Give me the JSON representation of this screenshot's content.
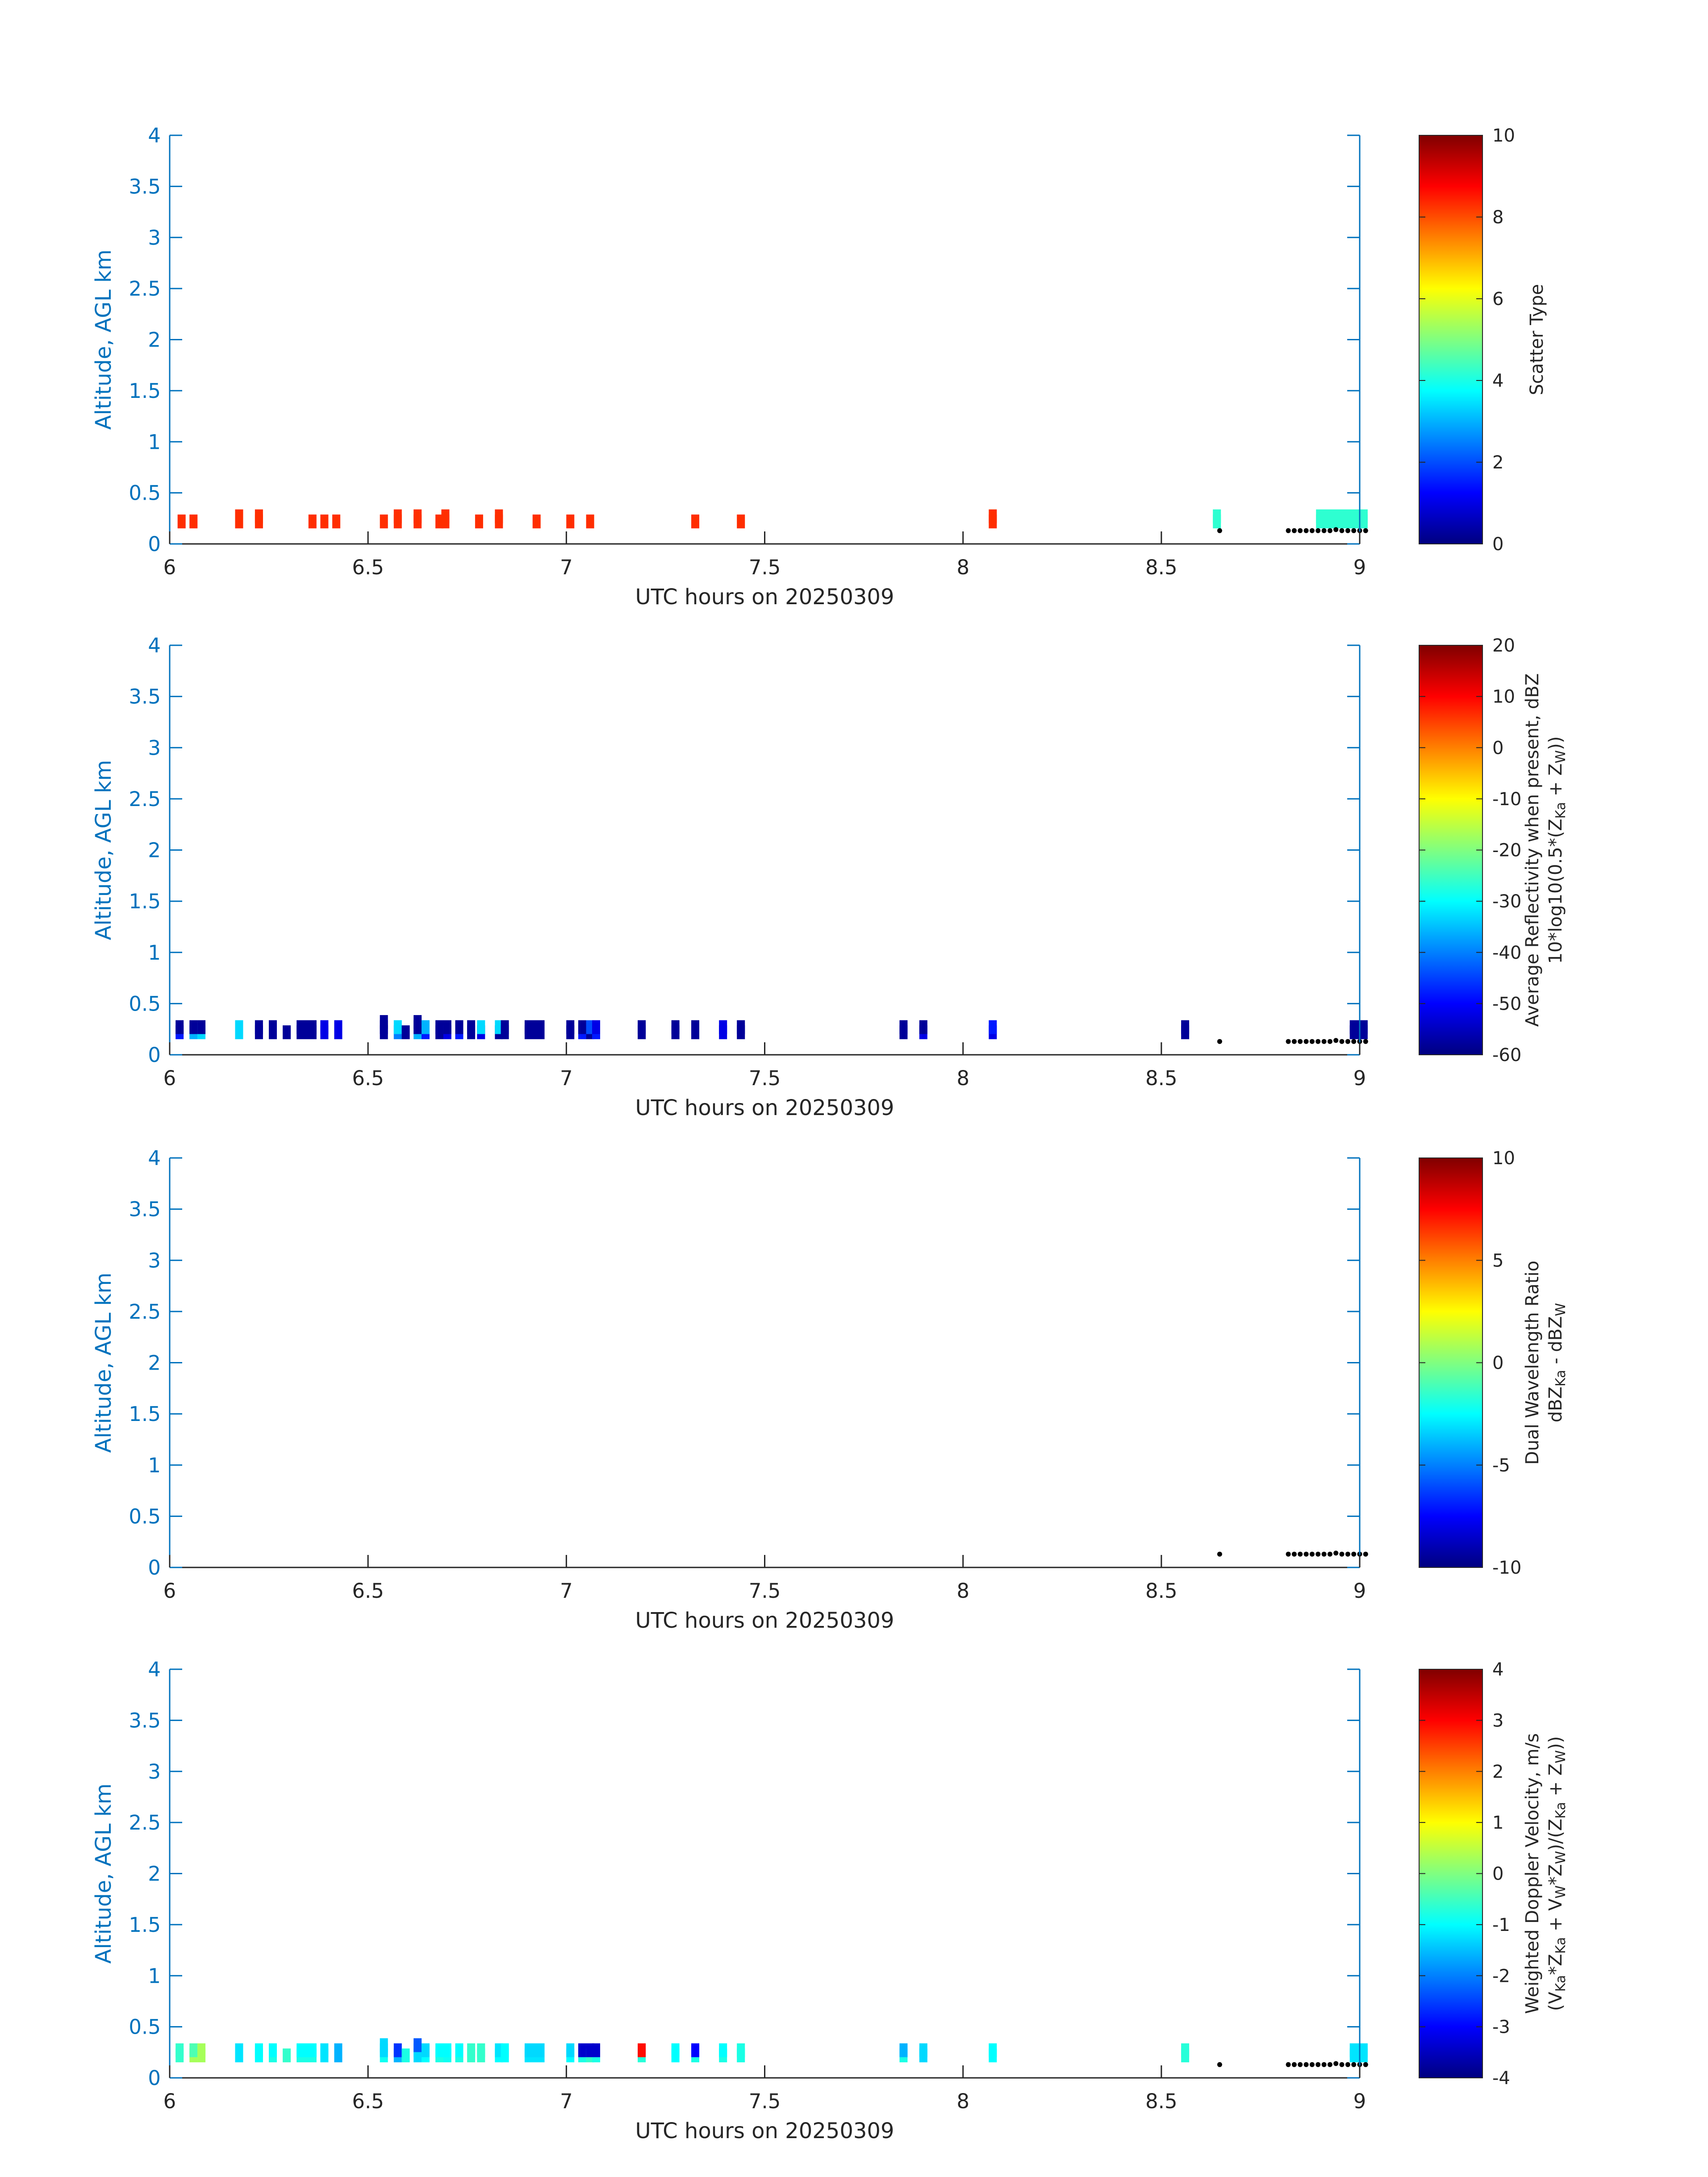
{
  "chart_data": [
    {
      "type": "heatmap",
      "xlabel": "UTC hours on 20250309",
      "ylabel": "Altitude, AGL km",
      "xlim": [
        6,
        9
      ],
      "ylim": [
        0,
        4
      ],
      "x_ticks": [
        "6",
        "6.5",
        "7",
        "7.5",
        "8",
        "8.5",
        "9"
      ],
      "y_ticks": [
        "0",
        "0.5",
        "1",
        "1.5",
        "2",
        "2.5",
        "3",
        "3.5",
        "4"
      ],
      "colorbar": {
        "label_lines": [
          "Scatter Type"
        ],
        "range": [
          0,
          10
        ],
        "ticks": [
          "0",
          "2",
          "4",
          "6",
          "8",
          "10"
        ]
      },
      "cells": [
        {
          "t": 6.03,
          "h": 0.22,
          "v": 8.3
        },
        {
          "t": 6.06,
          "h": 0.22,
          "v": 8.3
        },
        {
          "t": 6.175,
          "h": 0.22,
          "v": 8.3
        },
        {
          "t": 6.175,
          "h": 0.27,
          "v": 8.3
        },
        {
          "t": 6.225,
          "h": 0.22,
          "v": 8.3
        },
        {
          "t": 6.225,
          "h": 0.27,
          "v": 8.3
        },
        {
          "t": 6.36,
          "h": 0.22,
          "v": 8.3
        },
        {
          "t": 6.39,
          "h": 0.22,
          "v": 8.3
        },
        {
          "t": 6.42,
          "h": 0.22,
          "v": 8.3
        },
        {
          "t": 6.54,
          "h": 0.22,
          "v": 8.3
        },
        {
          "t": 6.575,
          "h": 0.22,
          "v": 8.3
        },
        {
          "t": 6.575,
          "h": 0.27,
          "v": 8.3
        },
        {
          "t": 6.625,
          "h": 0.22,
          "v": 8.3
        },
        {
          "t": 6.625,
          "h": 0.27,
          "v": 8.3
        },
        {
          "t": 6.68,
          "h": 0.22,
          "v": 8.3
        },
        {
          "t": 6.695,
          "h": 0.22,
          "v": 8.3
        },
        {
          "t": 6.695,
          "h": 0.27,
          "v": 8.3
        },
        {
          "t": 6.78,
          "h": 0.22,
          "v": 8.3
        },
        {
          "t": 6.83,
          "h": 0.22,
          "v": 8.3
        },
        {
          "t": 6.83,
          "h": 0.27,
          "v": 8.3
        },
        {
          "t": 6.925,
          "h": 0.22,
          "v": 8.3
        },
        {
          "t": 7.01,
          "h": 0.22,
          "v": 8.3
        },
        {
          "t": 7.06,
          "h": 0.22,
          "v": 8.3
        },
        {
          "t": 7.325,
          "h": 0.22,
          "v": 8.3
        },
        {
          "t": 7.44,
          "h": 0.22,
          "v": 8.3
        },
        {
          "t": 8.075,
          "h": 0.22,
          "v": 8.3
        },
        {
          "t": 8.075,
          "h": 0.27,
          "v": 8.3
        },
        {
          "t": 8.64,
          "h": 0.22,
          "v": 4.2
        },
        {
          "t": 8.64,
          "h": 0.27,
          "v": 4.2
        },
        {
          "t": 8.9,
          "t2": 9.01,
          "h": 0.22,
          "v": 4.2
        },
        {
          "t": 8.9,
          "t2": 9.01,
          "h": 0.27,
          "v": 4.2
        }
      ]
    },
    {
      "type": "heatmap",
      "xlabel": "UTC hours on 20250309",
      "ylabel": "Altitude, AGL km",
      "xlim": [
        6,
        9
      ],
      "ylim": [
        0,
        4
      ],
      "x_ticks": [
        "6",
        "6.5",
        "7",
        "7.5",
        "8",
        "8.5",
        "9"
      ],
      "y_ticks": [
        "0",
        "0.5",
        "1",
        "1.5",
        "2",
        "2.5",
        "3",
        "3.5",
        "4"
      ],
      "colorbar": {
        "label_lines": [
          "Average Reflectivity when present, dBZ",
          "10*log10(0.5*(Z",
          "Ka",
          " + Z",
          "W",
          "))"
        ],
        "range": [
          -60,
          20
        ],
        "ticks": [
          "-60",
          "-50",
          "-40",
          "-30",
          "-20",
          "-10",
          "0",
          "10",
          "20"
        ]
      },
      "cells": [
        {
          "t": 6.025,
          "h": 0.22,
          "v": -48
        },
        {
          "t": 6.025,
          "h": 0.27,
          "v": -58
        },
        {
          "t": 6.06,
          "h": 0.22,
          "v": -36
        },
        {
          "t": 6.06,
          "h": 0.27,
          "v": -58
        },
        {
          "t": 6.08,
          "h": 0.22,
          "v": -33
        },
        {
          "t": 6.08,
          "h": 0.27,
          "v": -58
        },
        {
          "t": 6.175,
          "h": 0.22,
          "v": -33
        },
        {
          "t": 6.175,
          "h": 0.27,
          "v": -33
        },
        {
          "t": 6.225,
          "h": 0.22,
          "v": -58
        },
        {
          "t": 6.225,
          "h": 0.27,
          "v": -58
        },
        {
          "t": 6.26,
          "h": 0.22,
          "v": -58
        },
        {
          "t": 6.26,
          "h": 0.27,
          "v": -58
        },
        {
          "t": 6.295,
          "h": 0.22,
          "v": -58
        },
        {
          "t": 6.33,
          "t2": 6.36,
          "h": 0.22,
          "v": -58
        },
        {
          "t": 6.33,
          "t2": 6.36,
          "h": 0.27,
          "v": -58
        },
        {
          "t": 6.39,
          "h": 0.22,
          "v": -52
        },
        {
          "t": 6.39,
          "h": 0.27,
          "v": -52
        },
        {
          "t": 6.425,
          "h": 0.22,
          "v": -52
        },
        {
          "t": 6.425,
          "h": 0.27,
          "v": -52
        },
        {
          "t": 6.54,
          "h": 0.22,
          "v": -58
        },
        {
          "t": 6.54,
          "h": 0.27,
          "v": -58
        },
        {
          "t": 6.54,
          "h": 0.32,
          "v": -58
        },
        {
          "t": 6.575,
          "h": 0.22,
          "v": -40
        },
        {
          "t": 6.575,
          "h": 0.27,
          "v": -33
        },
        {
          "t": 6.595,
          "h": 0.22,
          "v": -58
        },
        {
          "t": 6.625,
          "h": 0.22,
          "v": -36
        },
        {
          "t": 6.625,
          "h": 0.27,
          "v": -58
        },
        {
          "t": 6.625,
          "h": 0.32,
          "v": -58
        },
        {
          "t": 6.645,
          "h": 0.22,
          "v": -48
        },
        {
          "t": 6.645,
          "h": 0.27,
          "v": -36
        },
        {
          "t": 6.68,
          "h": 0.22,
          "v": -58
        },
        {
          "t": 6.68,
          "h": 0.27,
          "v": -58
        },
        {
          "t": 6.7,
          "h": 0.22,
          "v": -52
        },
        {
          "t": 6.7,
          "h": 0.27,
          "v": -58
        },
        {
          "t": 6.73,
          "h": 0.22,
          "v": -48
        },
        {
          "t": 6.73,
          "h": 0.27,
          "v": -58
        },
        {
          "t": 6.76,
          "h": 0.22,
          "v": -58
        },
        {
          "t": 6.76,
          "h": 0.27,
          "v": -58
        },
        {
          "t": 6.785,
          "h": 0.22,
          "v": -52
        },
        {
          "t": 6.785,
          "h": 0.27,
          "v": -33
        },
        {
          "t": 6.83,
          "h": 0.22,
          "v": -58
        },
        {
          "t": 6.83,
          "h": 0.27,
          "v": -33
        },
        {
          "t": 6.845,
          "h": 0.22,
          "v": -58
        },
        {
          "t": 6.845,
          "h": 0.27,
          "v": -58
        },
        {
          "t": 6.905,
          "t2": 6.935,
          "h": 0.22,
          "v": -58
        },
        {
          "t": 6.905,
          "t2": 6.935,
          "h": 0.27,
          "v": -58
        },
        {
          "t": 7.01,
          "h": 0.22,
          "v": -58
        },
        {
          "t": 7.01,
          "h": 0.27,
          "v": -58
        },
        {
          "t": 7.04,
          "h": 0.22,
          "v": -48
        },
        {
          "t": 7.04,
          "h": 0.27,
          "v": -58
        },
        {
          "t": 7.06,
          "h": 0.22,
          "v": -58
        },
        {
          "t": 7.06,
          "h": 0.27,
          "v": -44
        },
        {
          "t": 7.075,
          "h": 0.22,
          "v": -48
        },
        {
          "t": 7.075,
          "h": 0.27,
          "v": -52
        },
        {
          "t": 7.19,
          "h": 0.22,
          "v": -58
        },
        {
          "t": 7.19,
          "h": 0.27,
          "v": -58
        },
        {
          "t": 7.275,
          "h": 0.22,
          "v": -58
        },
        {
          "t": 7.275,
          "h": 0.27,
          "v": -58
        },
        {
          "t": 7.325,
          "h": 0.22,
          "v": -58
        },
        {
          "t": 7.325,
          "h": 0.27,
          "v": -58
        },
        {
          "t": 7.395,
          "h": 0.22,
          "v": -52
        },
        {
          "t": 7.395,
          "h": 0.27,
          "v": -52
        },
        {
          "t": 7.44,
          "h": 0.22,
          "v": -58
        },
        {
          "t": 7.44,
          "h": 0.27,
          "v": -58
        },
        {
          "t": 7.85,
          "h": 0.22,
          "v": -58
        },
        {
          "t": 7.85,
          "h": 0.27,
          "v": -58
        },
        {
          "t": 7.9,
          "h": 0.22,
          "v": -52
        },
        {
          "t": 7.9,
          "h": 0.27,
          "v": -58
        },
        {
          "t": 8.075,
          "h": 0.22,
          "v": -52
        },
        {
          "t": 8.075,
          "h": 0.27,
          "v": -48
        },
        {
          "t": 8.56,
          "h": 0.22,
          "v": -58
        },
        {
          "t": 8.56,
          "h": 0.27,
          "v": -58
        },
        {
          "t": 8.985,
          "t2": 9.01,
          "h": 0.22,
          "v": -58
        },
        {
          "t": 8.985,
          "t2": 9.01,
          "h": 0.27,
          "v": -58
        }
      ]
    },
    {
      "type": "heatmap",
      "xlabel": "UTC hours on 20250309",
      "ylabel": "Altitude, AGL km",
      "xlim": [
        6,
        9
      ],
      "ylim": [
        0,
        4
      ],
      "x_ticks": [
        "6",
        "6.5",
        "7",
        "7.5",
        "8",
        "8.5",
        "9"
      ],
      "y_ticks": [
        "0",
        "0.5",
        "1",
        "1.5",
        "2",
        "2.5",
        "3",
        "3.5",
        "4"
      ],
      "colorbar": {
        "label_lines": [
          "Dual Wavelength Ratio",
          "dBZ",
          "Ka",
          " - dBZ",
          "W"
        ],
        "range": [
          -10,
          10
        ],
        "ticks": [
          "-10",
          "-5",
          "0",
          "5",
          "10"
        ]
      },
      "cells": []
    },
    {
      "type": "heatmap",
      "xlabel": "UTC hours on 20250309",
      "ylabel": "Altitude, AGL km",
      "xlim": [
        6,
        9
      ],
      "ylim": [
        0,
        4
      ],
      "x_ticks": [
        "6",
        "6.5",
        "7",
        "7.5",
        "8",
        "8.5",
        "9"
      ],
      "y_ticks": [
        "0",
        "0.5",
        "1",
        "1.5",
        "2",
        "2.5",
        "3",
        "3.5",
        "4"
      ],
      "colorbar": {
        "label_lines": [
          "Weighted Doppler Velocity, m/s",
          "(V",
          "Ka",
          "*Z",
          "Ka",
          " + V",
          "W",
          "*Z",
          "W",
          ")/(Z",
          "Ka",
          " + Z",
          "W",
          "))"
        ],
        "range": [
          -4,
          4
        ],
        "ticks": [
          "-4",
          "-3",
          "-2",
          "-1",
          "0",
          "1",
          "2",
          "3",
          "4"
        ]
      },
      "cells": [
        {
          "t": 6.025,
          "h": 0.22,
          "v": -0.6
        },
        {
          "t": 6.025,
          "h": 0.27,
          "v": -0.6
        },
        {
          "t": 6.06,
          "h": 0.22,
          "v": 0.3
        },
        {
          "t": 6.06,
          "h": 0.27,
          "v": -0.4
        },
        {
          "t": 6.08,
          "h": 0.22,
          "v": 0.3
        },
        {
          "t": 6.08,
          "h": 0.27,
          "v": 0.3
        },
        {
          "t": 6.175,
          "h": 0.22,
          "v": -1.2
        },
        {
          "t": 6.175,
          "h": 0.27,
          "v": -1.2
        },
        {
          "t": 6.225,
          "h": 0.22,
          "v": -1.0
        },
        {
          "t": 6.225,
          "h": 0.27,
          "v": -1.0
        },
        {
          "t": 6.26,
          "h": 0.22,
          "v": -0.8
        },
        {
          "t": 6.26,
          "h": 0.27,
          "v": -1.0
        },
        {
          "t": 6.295,
          "h": 0.22,
          "v": -0.6
        },
        {
          "t": 6.33,
          "t2": 6.36,
          "h": 0.22,
          "v": -0.8
        },
        {
          "t": 6.33,
          "t2": 6.36,
          "h": 0.27,
          "v": -1.0
        },
        {
          "t": 6.39,
          "h": 0.22,
          "v": -1.2
        },
        {
          "t": 6.39,
          "h": 0.27,
          "v": -1.2
        },
        {
          "t": 6.425,
          "h": 0.22,
          "v": -1.6
        },
        {
          "t": 6.425,
          "h": 0.27,
          "v": -1.6
        },
        {
          "t": 6.54,
          "h": 0.22,
          "v": -0.9
        },
        {
          "t": 6.54,
          "h": 0.27,
          "v": -1.3
        },
        {
          "t": 6.54,
          "h": 0.32,
          "v": -1.3
        },
        {
          "t": 6.575,
          "h": 0.22,
          "v": -1.6
        },
        {
          "t": 6.575,
          "h": 0.27,
          "v": -2.6
        },
        {
          "t": 6.595,
          "h": 0.22,
          "v": -0.8
        },
        {
          "t": 6.625,
          "h": 0.22,
          "v": -1.3
        },
        {
          "t": 6.625,
          "h": 0.27,
          "v": -1.3
        },
        {
          "t": 6.625,
          "h": 0.32,
          "v": -2.3
        },
        {
          "t": 6.645,
          "h": 0.22,
          "v": -1.0
        },
        {
          "t": 6.645,
          "h": 0.27,
          "v": -1.3
        },
        {
          "t": 6.68,
          "h": 0.22,
          "v": -0.8
        },
        {
          "t": 6.68,
          "h": 0.27,
          "v": -1.0
        },
        {
          "t": 6.7,
          "h": 0.22,
          "v": -0.9
        },
        {
          "t": 6.7,
          "h": 0.27,
          "v": -1.0
        },
        {
          "t": 6.73,
          "h": 0.22,
          "v": -0.8
        },
        {
          "t": 6.73,
          "h": 0.27,
          "v": -1.0
        },
        {
          "t": 6.76,
          "h": 0.22,
          "v": -0.6
        },
        {
          "t": 6.76,
          "h": 0.27,
          "v": -0.6
        },
        {
          "t": 6.785,
          "h": 0.22,
          "v": -0.6
        },
        {
          "t": 6.785,
          "h": 0.27,
          "v": -0.6
        },
        {
          "t": 6.83,
          "h": 0.22,
          "v": -1.0
        },
        {
          "t": 6.83,
          "h": 0.27,
          "v": -1.2
        },
        {
          "t": 6.845,
          "h": 0.22,
          "v": -1.0
        },
        {
          "t": 6.845,
          "h": 0.27,
          "v": -1.0
        },
        {
          "t": 6.905,
          "t2": 6.935,
          "h": 0.22,
          "v": -1.2
        },
        {
          "t": 6.905,
          "t2": 6.935,
          "h": 0.27,
          "v": -1.3
        },
        {
          "t": 7.01,
          "h": 0.22,
          "v": -1.0
        },
        {
          "t": 7.01,
          "h": 0.27,
          "v": -1.3
        },
        {
          "t": 7.04,
          "h": 0.22,
          "v": -0.8
        },
        {
          "t": 7.04,
          "h": 0.27,
          "v": -3.4
        },
        {
          "t": 7.06,
          "h": 0.22,
          "v": -0.6
        },
        {
          "t": 7.06,
          "h": 0.27,
          "v": -3.4
        },
        {
          "t": 7.075,
          "h": 0.22,
          "v": -0.8
        },
        {
          "t": 7.075,
          "h": 0.27,
          "v": -3.4
        },
        {
          "t": 7.19,
          "h": 0.22,
          "v": -0.7
        },
        {
          "t": 7.19,
          "h": 0.27,
          "v": 2.9
        },
        {
          "t": 7.275,
          "h": 0.22,
          "v": -1.0
        },
        {
          "t": 7.275,
          "h": 0.27,
          "v": -1.0
        },
        {
          "t": 7.325,
          "h": 0.22,
          "v": -0.8
        },
        {
          "t": 7.325,
          "h": 0.27,
          "v": -3.0
        },
        {
          "t": 7.395,
          "h": 0.22,
          "v": -0.8
        },
        {
          "t": 7.395,
          "h": 0.27,
          "v": -1.0
        },
        {
          "t": 7.44,
          "h": 0.22,
          "v": -0.8
        },
        {
          "t": 7.44,
          "h": 0.27,
          "v": -0.8
        },
        {
          "t": 7.85,
          "h": 0.22,
          "v": -0.8
        },
        {
          "t": 7.85,
          "h": 0.27,
          "v": -1.6
        },
        {
          "t": 7.9,
          "h": 0.22,
          "v": -1.3
        },
        {
          "t": 7.9,
          "h": 0.27,
          "v": -1.3
        },
        {
          "t": 8.075,
          "h": 0.22,
          "v": -1.0
        },
        {
          "t": 8.075,
          "h": 0.27,
          "v": -1.0
        },
        {
          "t": 8.56,
          "h": 0.22,
          "v": -0.7
        },
        {
          "t": 8.56,
          "h": 0.27,
          "v": -0.7
        },
        {
          "t": 8.985,
          "t2": 9.01,
          "h": 0.22,
          "v": -1.2
        },
        {
          "t": 8.985,
          "t2": 9.01,
          "h": 0.27,
          "v": -1.2
        }
      ]
    }
  ],
  "ground_markers": {
    "times": [
      8.647,
      8.82,
      8.835,
      8.85,
      8.865,
      8.88,
      8.895,
      8.91,
      8.925,
      8.94,
      8.955,
      8.97,
      8.985,
      9.0,
      9.015
    ],
    "heights": [
      0.13,
      0.13,
      0.13,
      0.13,
      0.13,
      0.13,
      0.13,
      0.13,
      0.13,
      0.14,
      0.13,
      0.13,
      0.13,
      0.13,
      0.13
    ]
  }
}
